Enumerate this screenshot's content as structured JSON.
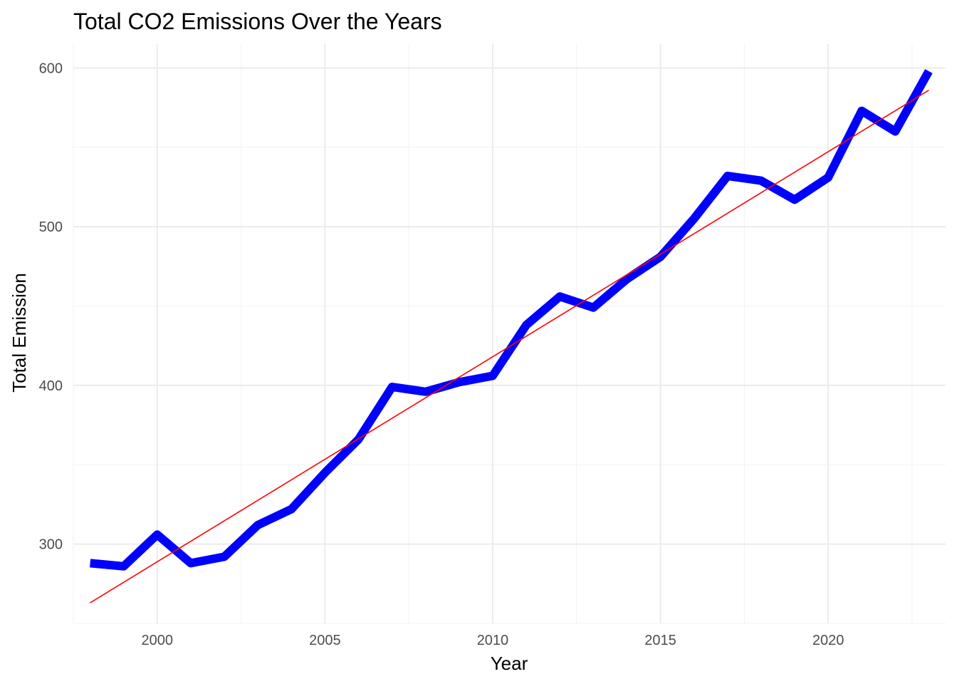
{
  "chart_data": {
    "type": "line",
    "title": "Total CO2 Emissions Over the Years",
    "xlabel": "Year",
    "ylabel": "Total Emission",
    "xlim": [
      1997.5,
      2023.5
    ],
    "ylim": [
      250,
      615
    ],
    "x_ticks": [
      2000,
      2005,
      2010,
      2015,
      2020
    ],
    "y_ticks": [
      300,
      400,
      500,
      600
    ],
    "grid": true,
    "legend": "none",
    "x": [
      1998,
      1999,
      2000,
      2001,
      2002,
      2003,
      2004,
      2005,
      2006,
      2007,
      2008,
      2009,
      2010,
      2011,
      2012,
      2013,
      2014,
      2015,
      2016,
      2017,
      2018,
      2019,
      2020,
      2021,
      2022,
      2023
    ],
    "series": [
      {
        "color": "#0000ff",
        "values": [
          288,
          286,
          306,
          288,
          292,
          312,
          322,
          345,
          366,
          399,
          396,
          402,
          406,
          438,
          456,
          449,
          467,
          481,
          505,
          532,
          529,
          517,
          531,
          573,
          560,
          598
        ]
      }
    ],
    "trend_line": {
      "color": "#ff0000",
      "x": [
        1998,
        2023
      ],
      "values": [
        263,
        586
      ]
    }
  }
}
